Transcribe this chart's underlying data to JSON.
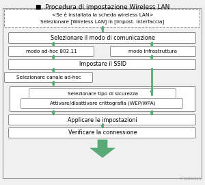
{
  "title": "■  Procedura di impostazione Wireless LAN",
  "box1_text": "<Se è installata la scheda wireless LAN>\nSelezionare [Wireless LAN] in [Impost. interfaccia]",
  "box2_text": "Selezionare il modo di comunicazione",
  "box3a_text": "modo ad-hoc 802.11",
  "box3b_text": "modo infrastruttura",
  "box4_text": "Impostare il SSID",
  "box5_text": "Selezionare canale ad-hoc",
  "box6_inner1": "Selezionare tipo di sicurezza",
  "box6_inner2": "Attivare/disattivare crittografia (WEP/WPA)",
  "box7_text": "Applicare le impostazioni",
  "box8_text": "Verificare la connessione",
  "footer": "IT B8M0025",
  "arrow_color": "#5aaa78",
  "box_border_color": "#888888",
  "bg_color": "#f0f0f0",
  "font_size": 5.8,
  "small_font_size": 5.2
}
